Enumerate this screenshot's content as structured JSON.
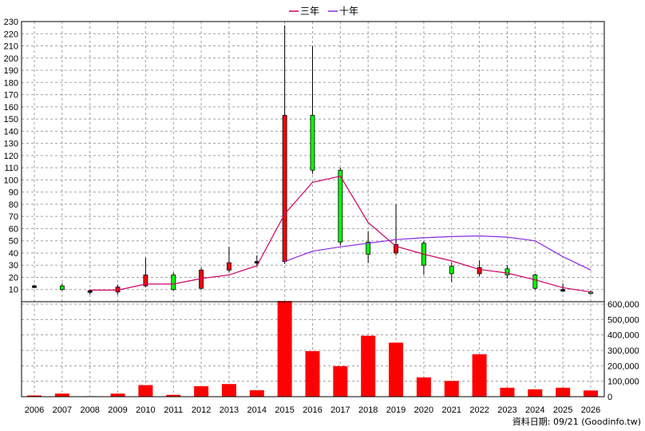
{
  "chart_data": {
    "type": "candlestick",
    "years": [
      "2006",
      "2007",
      "2008",
      "2009",
      "2010",
      "2011",
      "2012",
      "2013",
      "2014",
      "2015",
      "2016",
      "2017",
      "2018",
      "2019",
      "2020",
      "2021",
      "2022",
      "2023",
      "2024",
      "2025",
      "2026"
    ],
    "candles": [
      {
        "open": 13,
        "close": 13,
        "high": 14,
        "low": 11,
        "color": "black"
      },
      {
        "open": 10,
        "close": 13,
        "high": 15,
        "low": 9,
        "color": "green"
      },
      {
        "open": 9,
        "close": 8,
        "high": 10,
        "low": 6,
        "color": "black"
      },
      {
        "open": 8,
        "close": 12,
        "high": 14,
        "low": 6,
        "color": "red"
      },
      {
        "open": 13,
        "close": 22,
        "high": 36,
        "low": 12,
        "color": "red"
      },
      {
        "open": 22,
        "close": 10,
        "high": 24,
        "low": 9,
        "color": "green"
      },
      {
        "open": 11,
        "close": 26,
        "high": 28,
        "low": 10,
        "color": "red"
      },
      {
        "open": 26,
        "close": 32,
        "high": 45,
        "low": 24,
        "color": "red"
      },
      {
        "open": 32,
        "close": 33,
        "high": 38,
        "low": 29,
        "color": "black"
      },
      {
        "open": 33,
        "close": 153,
        "high": 227,
        "low": 31,
        "color": "red"
      },
      {
        "open": 153,
        "close": 108,
        "high": 210,
        "low": 105,
        "color": "green"
      },
      {
        "open": 108,
        "close": 49,
        "high": 110,
        "low": 46,
        "color": "green"
      },
      {
        "open": 39,
        "close": 49,
        "high": 58,
        "low": 32,
        "color": "green"
      },
      {
        "open": 40,
        "close": 47,
        "high": 80,
        "low": 38,
        "color": "red"
      },
      {
        "open": 48,
        "close": 30,
        "high": 50,
        "low": 22,
        "color": "green"
      },
      {
        "open": 29,
        "close": 23,
        "high": 32,
        "low": 16,
        "color": "green"
      },
      {
        "open": 23,
        "close": 28,
        "high": 34,
        "low": 21,
        "color": "red"
      },
      {
        "open": 27,
        "close": 22,
        "high": 30,
        "low": 19,
        "color": "green"
      },
      {
        "open": 22,
        "close": 11,
        "high": 23,
        "low": 10,
        "color": "green"
      },
      {
        "open": 10,
        "close": 9,
        "high": 15,
        "low": 8,
        "color": "black"
      },
      {
        "open": 8,
        "close": 7,
        "high": 9,
        "low": 6,
        "color": "green"
      }
    ],
    "series": [
      {
        "name": "三年",
        "color": "#cc0066",
        "start": 2,
        "values": [
          9.5,
          9.5,
          14.5,
          14.5,
          19,
          22,
          29.5,
          72,
          98,
          103,
          65,
          45.5,
          39,
          33.5,
          26.5,
          23.5,
          18,
          11.5,
          8
        ]
      },
      {
        "name": "十年",
        "color": "#8a2be2",
        "start": 9,
        "values": [
          33,
          41.5,
          45,
          48,
          51,
          52.5,
          53.5,
          54,
          53,
          50,
          37,
          26
        ]
      }
    ],
    "volume": [
      8000,
      20000,
      3000,
      20000,
      75000,
      12000,
      68000,
      82000,
      42000,
      620000,
      295000,
      198000,
      395000,
      350000,
      125000,
      102000,
      275000,
      58000,
      48000,
      58000,
      40000
    ],
    "price_axis": {
      "min": 0,
      "max": 230,
      "ticks": [
        10,
        20,
        30,
        40,
        50,
        60,
        70,
        80,
        90,
        100,
        110,
        120,
        130,
        140,
        150,
        160,
        170,
        180,
        190,
        200,
        210,
        220,
        230
      ]
    },
    "volume_axis": {
      "min": 0,
      "max": 600000,
      "ticks": [
        0,
        100000,
        200000,
        300000,
        400000,
        500000,
        600000
      ],
      "tick_labels": [
        "0",
        "100,000",
        "200,000",
        "300,000",
        "400,000",
        "500,000",
        "600,000"
      ]
    },
    "grid": true,
    "legend_position": "top-center",
    "footer": "資料日期: 09/21  (Goodinfo.tw)"
  },
  "colors": {
    "up": "#ff0000",
    "down": "#00ff00",
    "flat": "#000000",
    "volume": "#ff0000",
    "grid": "#a0a0a0"
  }
}
